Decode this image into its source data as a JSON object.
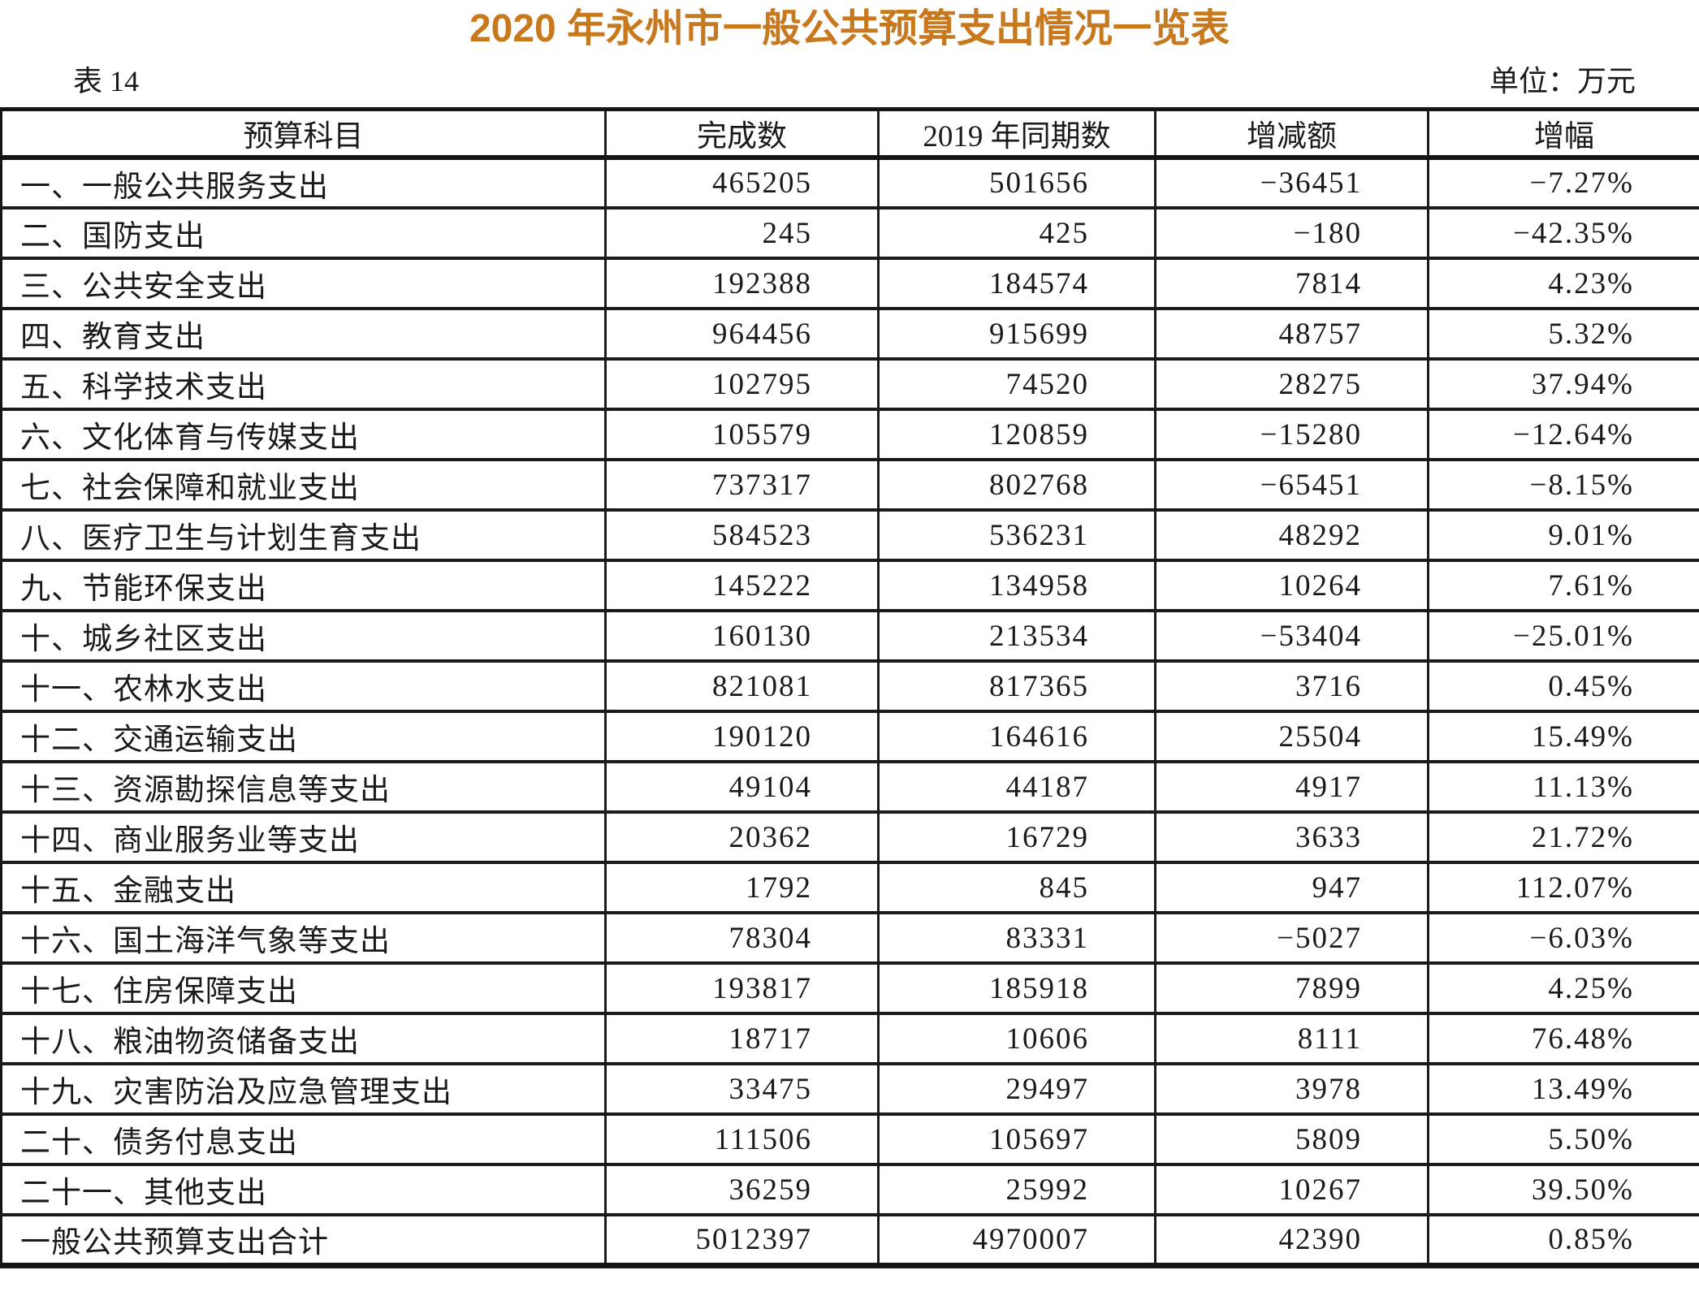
{
  "page": {
    "title": "2020 年永州市一般公共预算支出情况一览表",
    "table_label": "表 14",
    "unit_label": "单位：万元"
  },
  "table": {
    "columns": [
      "预算科目",
      "完成数",
      "2019 年同期数",
      "增减额",
      "增幅"
    ],
    "rows": [
      [
        "一、一般公共服务支出",
        "465205",
        "501656",
        "−36451",
        "−7.27%"
      ],
      [
        "二、国防支出",
        "245",
        "425",
        "−180",
        "−42.35%"
      ],
      [
        "三、公共安全支出",
        "192388",
        "184574",
        "7814",
        "4.23%"
      ],
      [
        "四、教育支出",
        "964456",
        "915699",
        "48757",
        "5.32%"
      ],
      [
        "五、科学技术支出",
        "102795",
        "74520",
        "28275",
        "37.94%"
      ],
      [
        "六、文化体育与传媒支出",
        "105579",
        "120859",
        "−15280",
        "−12.64%"
      ],
      [
        "七、社会保障和就业支出",
        "737317",
        "802768",
        "−65451",
        "−8.15%"
      ],
      [
        "八、医疗卫生与计划生育支出",
        "584523",
        "536231",
        "48292",
        "9.01%"
      ],
      [
        "九、节能环保支出",
        "145222",
        "134958",
        "10264",
        "7.61%"
      ],
      [
        "十、城乡社区支出",
        "160130",
        "213534",
        "−53404",
        "−25.01%"
      ],
      [
        "十一、农林水支出",
        "821081",
        "817365",
        "3716",
        "0.45%"
      ],
      [
        "十二、交通运输支出",
        "190120",
        "164616",
        "25504",
        "15.49%"
      ],
      [
        "十三、资源勘探信息等支出",
        "49104",
        "44187",
        "4917",
        "11.13%"
      ],
      [
        "十四、商业服务业等支出",
        "20362",
        "16729",
        "3633",
        "21.72%"
      ],
      [
        "十五、金融支出",
        "1792",
        "845",
        "947",
        "112.07%"
      ],
      [
        "十六、国土海洋气象等支出",
        "78304",
        "83331",
        "−5027",
        "−6.03%"
      ],
      [
        "十七、住房保障支出",
        "193817",
        "185918",
        "7899",
        "4.25%"
      ],
      [
        "十八、粮油物资储备支出",
        "18717",
        "10606",
        "8111",
        "76.48%"
      ],
      [
        "十九、灾害防治及应急管理支出",
        "33475",
        "29497",
        "3978",
        "13.49%"
      ],
      [
        "二十、债务付息支出",
        "111506",
        "105697",
        "5809",
        "5.50%"
      ],
      [
        "二十一、其他支出",
        "36259",
        "25992",
        "10267",
        "39.50%"
      ],
      [
        "一般公共预算支出合计",
        "5012397",
        "4970007",
        "42390",
        "0.85%"
      ]
    ]
  },
  "colors": {
    "title_accent": "#c8791e",
    "text": "#1a1a1a",
    "border": "#151515"
  }
}
